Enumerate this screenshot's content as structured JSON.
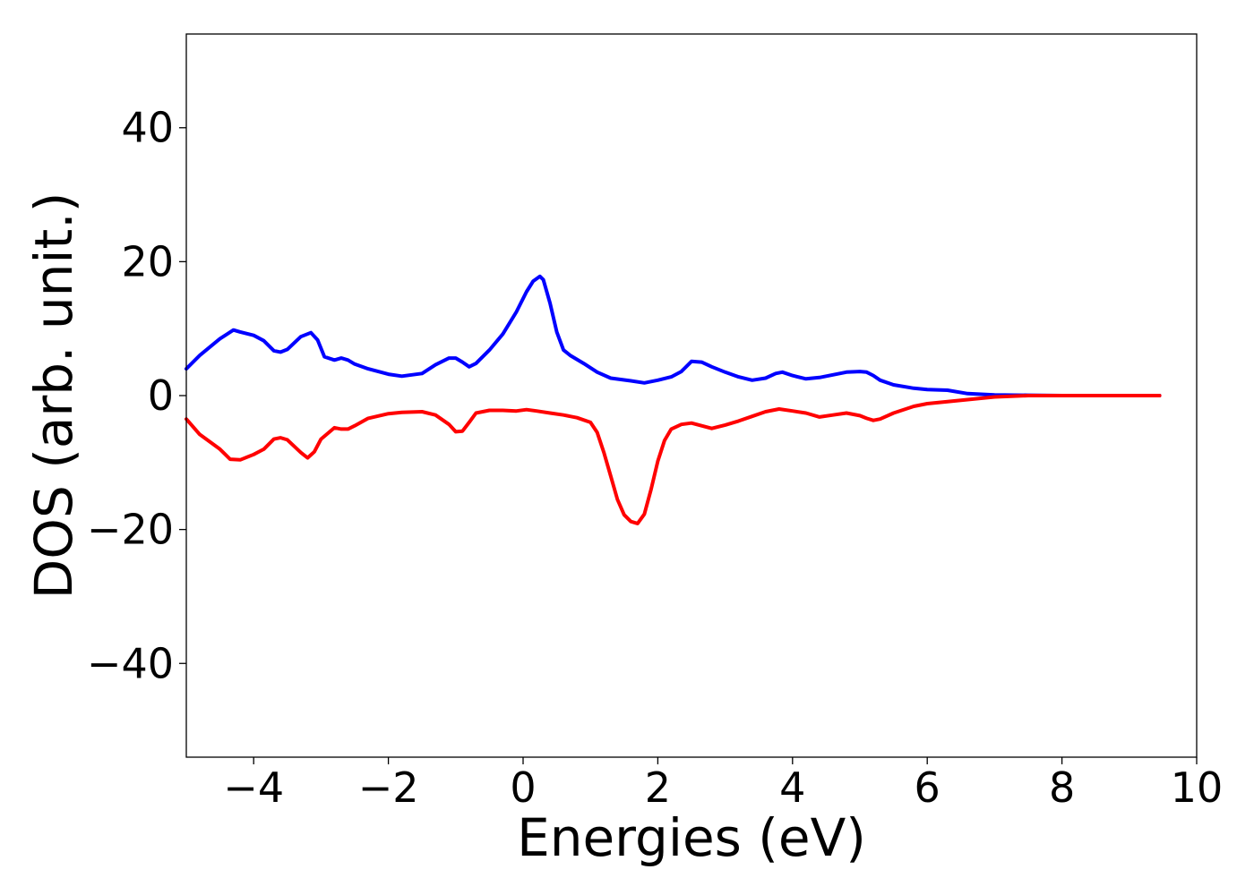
{
  "chart_data": {
    "type": "line",
    "title": "",
    "xlabel": "Energies (eV)",
    "ylabel": "DOS (arb. unit.)",
    "xlim": [
      -5,
      10
    ],
    "ylim": [
      -54,
      54
    ],
    "xticks": [
      -4,
      -2,
      0,
      2,
      4,
      6,
      8,
      10
    ],
    "xtick_labels": [
      "−4",
      "−2",
      "0",
      "2",
      "4",
      "6",
      "8",
      "10"
    ],
    "yticks": [
      -40,
      -20,
      0,
      20,
      40
    ],
    "ytick_labels": [
      "−40",
      "−20",
      "0",
      "20",
      "40"
    ],
    "grid": false,
    "legend": "none",
    "series": [
      {
        "color": "#0000ff",
        "x": [
          -5.0,
          -4.8,
          -4.5,
          -4.3,
          -4.2,
          -4.0,
          -3.85,
          -3.7,
          -3.6,
          -3.5,
          -3.3,
          -3.15,
          -3.05,
          -2.95,
          -2.8,
          -2.7,
          -2.6,
          -2.5,
          -2.3,
          -2.0,
          -1.8,
          -1.5,
          -1.3,
          -1.1,
          -1.0,
          -0.9,
          -0.8,
          -0.7,
          -0.5,
          -0.3,
          -0.1,
          0.05,
          0.15,
          0.25,
          0.3,
          0.4,
          0.5,
          0.6,
          0.7,
          0.9,
          1.1,
          1.3,
          1.6,
          1.8,
          2.0,
          2.2,
          2.35,
          2.5,
          2.65,
          2.8,
          3.0,
          3.2,
          3.4,
          3.6,
          3.75,
          3.85,
          4.0,
          4.2,
          4.4,
          4.6,
          4.8,
          5.0,
          5.1,
          5.2,
          5.3,
          5.5,
          5.8,
          6.0,
          6.3,
          6.6,
          7.0,
          7.5,
          8.0,
          9.0,
          9.45
        ],
        "y": [
          4.0,
          6.0,
          8.5,
          9.8,
          9.5,
          9.0,
          8.2,
          6.7,
          6.5,
          6.9,
          8.8,
          9.4,
          8.3,
          5.8,
          5.3,
          5.6,
          5.3,
          4.7,
          4.0,
          3.2,
          2.9,
          3.3,
          4.6,
          5.6,
          5.6,
          5.0,
          4.3,
          4.8,
          6.8,
          9.2,
          12.5,
          15.5,
          17.1,
          17.8,
          17.3,
          13.8,
          9.5,
          6.8,
          6.0,
          4.8,
          3.5,
          2.6,
          2.2,
          1.9,
          2.3,
          2.8,
          3.6,
          5.1,
          5.0,
          4.3,
          3.5,
          2.8,
          2.3,
          2.6,
          3.3,
          3.5,
          3.0,
          2.5,
          2.7,
          3.1,
          3.5,
          3.6,
          3.5,
          3.0,
          2.3,
          1.6,
          1.1,
          0.9,
          0.8,
          0.3,
          0.1,
          0.05,
          0.0,
          0.0,
          0.0
        ]
      },
      {
        "color": "#ff0000",
        "x": [
          -5.0,
          -4.8,
          -4.5,
          -4.35,
          -4.2,
          -4.0,
          -3.85,
          -3.7,
          -3.6,
          -3.5,
          -3.3,
          -3.2,
          -3.1,
          -3.0,
          -2.8,
          -2.7,
          -2.6,
          -2.5,
          -2.3,
          -2.0,
          -1.8,
          -1.5,
          -1.3,
          -1.1,
          -1.0,
          -0.9,
          -0.8,
          -0.7,
          -0.5,
          -0.3,
          -0.1,
          0.05,
          0.2,
          0.4,
          0.6,
          0.8,
          1.0,
          1.1,
          1.2,
          1.3,
          1.4,
          1.5,
          1.6,
          1.7,
          1.8,
          1.9,
          2.0,
          2.1,
          2.2,
          2.35,
          2.5,
          2.65,
          2.8,
          3.0,
          3.2,
          3.4,
          3.6,
          3.8,
          4.0,
          4.2,
          4.4,
          4.6,
          4.8,
          5.0,
          5.1,
          5.2,
          5.3,
          5.5,
          5.8,
          6.0,
          6.3,
          6.6,
          7.0,
          7.5,
          8.0,
          9.0,
          9.45
        ],
        "y": [
          -3.5,
          -5.8,
          -8.0,
          -9.5,
          -9.6,
          -8.8,
          -8.0,
          -6.5,
          -6.3,
          -6.6,
          -8.5,
          -9.3,
          -8.4,
          -6.5,
          -4.8,
          -5.0,
          -5.0,
          -4.5,
          -3.4,
          -2.7,
          -2.5,
          -2.4,
          -2.9,
          -4.3,
          -5.4,
          -5.3,
          -4.0,
          -2.6,
          -2.2,
          -2.2,
          -2.3,
          -2.1,
          -2.3,
          -2.6,
          -2.9,
          -3.3,
          -4.0,
          -5.5,
          -8.5,
          -12.0,
          -15.5,
          -17.8,
          -18.8,
          -19.1,
          -17.7,
          -14.0,
          -9.8,
          -6.7,
          -5.0,
          -4.3,
          -4.1,
          -4.5,
          -4.9,
          -4.4,
          -3.8,
          -3.1,
          -2.4,
          -2.0,
          -2.3,
          -2.6,
          -3.2,
          -2.9,
          -2.6,
          -3.0,
          -3.4,
          -3.7,
          -3.5,
          -2.6,
          -1.6,
          -1.2,
          -0.9,
          -0.6,
          -0.2,
          0.0,
          0.0,
          0.0,
          0.0
        ]
      }
    ]
  }
}
